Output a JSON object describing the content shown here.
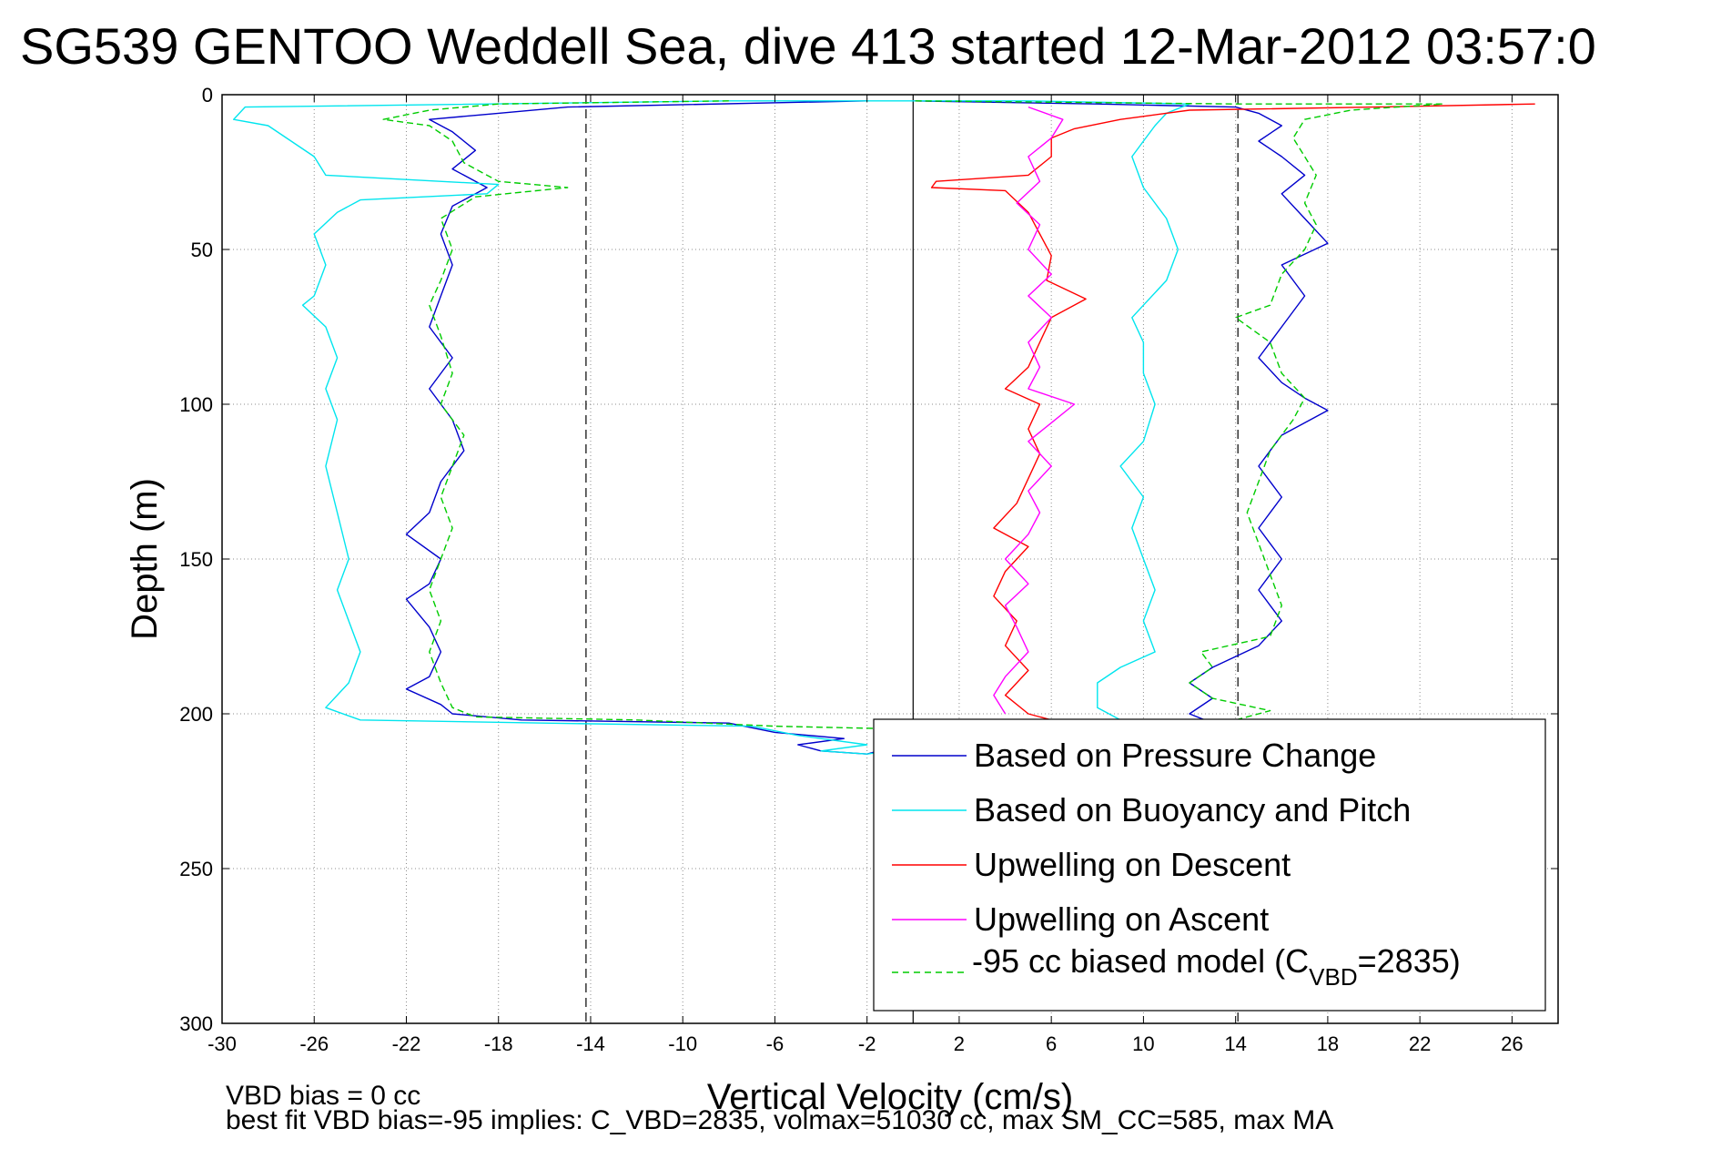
{
  "chart_data": {
    "type": "line",
    "title": "SG539 GENTOO Weddell Sea, dive 413 started 12-Mar-2012 03:57:0",
    "xlabel": "Vertical Velocity (cm/s)",
    "ylabel": "Depth (m)",
    "xlim": [
      -30,
      28
    ],
    "ylim": [
      0,
      300
    ],
    "y_reversed": true,
    "x_ticks": [
      "-30",
      "-26",
      "-22",
      "-18",
      "-14",
      "-10",
      "-6",
      "-2",
      "2",
      "6",
      "10",
      "14",
      "18",
      "22",
      "26"
    ],
    "y_ticks": [
      "0",
      "50",
      "100",
      "150",
      "200",
      "250",
      "300"
    ],
    "grid": true,
    "legend_position": "bottom-right",
    "reference_lines": [
      {
        "x": -14.2,
        "style": "dashed"
      },
      {
        "x": 0,
        "style": "solid"
      },
      {
        "x": 14.1,
        "style": "dashed"
      }
    ],
    "series": [
      {
        "name": "Based on Pressure Change",
        "color": "#0000cc",
        "style": "solid",
        "points": [
          [
            -2,
            2
          ],
          [
            -15,
            4
          ],
          [
            -18,
            6
          ],
          [
            -21,
            8
          ],
          [
            -20,
            12
          ],
          [
            -19,
            18
          ],
          [
            -20,
            24
          ],
          [
            -18.5,
            30
          ],
          [
            -20,
            36
          ],
          [
            -20.5,
            45
          ],
          [
            -20,
            55
          ],
          [
            -20.5,
            65
          ],
          [
            -21,
            75
          ],
          [
            -20,
            85
          ],
          [
            -21,
            95
          ],
          [
            -20,
            105
          ],
          [
            -19.5,
            115
          ],
          [
            -20.5,
            125
          ],
          [
            -21,
            135
          ],
          [
            -22,
            142
          ],
          [
            -20.5,
            150
          ],
          [
            -21,
            158
          ],
          [
            -22,
            163
          ],
          [
            -21,
            172
          ],
          [
            -20.5,
            180
          ],
          [
            -21,
            188
          ],
          [
            -22,
            192
          ],
          [
            -20.5,
            197
          ],
          [
            -20,
            200
          ],
          [
            -17,
            202
          ],
          [
            -8,
            203
          ],
          [
            -6,
            206
          ],
          [
            -3,
            208
          ],
          [
            -5,
            210
          ],
          [
            -4,
            212
          ],
          [
            -2,
            213
          ],
          [
            -1,
            211
          ],
          [
            1,
            209
          ],
          [
            3,
            207
          ],
          [
            6,
            206
          ],
          [
            9,
            205
          ],
          [
            12,
            204
          ],
          [
            13,
            203
          ],
          [
            12,
            200
          ],
          [
            13,
            195
          ],
          [
            12,
            190
          ],
          [
            13,
            185
          ],
          [
            15,
            178
          ],
          [
            16,
            170
          ],
          [
            15,
            160
          ],
          [
            16,
            150
          ],
          [
            15,
            140
          ],
          [
            16,
            130
          ],
          [
            15,
            120
          ],
          [
            16,
            110
          ],
          [
            18,
            102
          ],
          [
            17,
            98
          ],
          [
            16,
            93
          ],
          [
            15,
            85
          ],
          [
            16,
            75
          ],
          [
            17,
            65
          ],
          [
            16,
            55
          ],
          [
            18,
            48
          ],
          [
            17,
            40
          ],
          [
            16,
            32
          ],
          [
            17,
            26
          ],
          [
            16,
            20
          ],
          [
            15,
            15
          ],
          [
            16,
            10
          ],
          [
            15,
            6
          ],
          [
            14,
            4
          ],
          [
            8,
            3
          ],
          [
            0,
            2
          ]
        ]
      },
      {
        "name": "Based on Buoyancy and Pitch",
        "color": "#00e5ee",
        "style": "solid",
        "points": [
          [
            -8,
            2
          ],
          [
            -29,
            4
          ],
          [
            -29.5,
            8
          ],
          [
            -28,
            10
          ],
          [
            -27,
            15
          ],
          [
            -26,
            20
          ],
          [
            -25.5,
            26
          ],
          [
            -18,
            29
          ],
          [
            -18.5,
            32
          ],
          [
            -24,
            34
          ],
          [
            -25,
            38
          ],
          [
            -26,
            45
          ],
          [
            -25.5,
            55
          ],
          [
            -26,
            65
          ],
          [
            -26.5,
            68
          ],
          [
            -25.5,
            75
          ],
          [
            -25,
            85
          ],
          [
            -25.5,
            95
          ],
          [
            -25,
            105
          ],
          [
            -25.5,
            120
          ],
          [
            -25,
            135
          ],
          [
            -24.5,
            150
          ],
          [
            -25,
            160
          ],
          [
            -24.5,
            170
          ],
          [
            -24,
            180
          ],
          [
            -24.5,
            190
          ],
          [
            -25.5,
            198
          ],
          [
            -24,
            202
          ],
          [
            -16,
            203
          ],
          [
            -7,
            204
          ],
          [
            -5,
            207
          ],
          [
            -2,
            210
          ],
          [
            -4,
            212
          ],
          [
            -2,
            213
          ],
          [
            1,
            210
          ],
          [
            4,
            207
          ],
          [
            7,
            205
          ],
          [
            9,
            202
          ],
          [
            8,
            198
          ],
          [
            8,
            190
          ],
          [
            9,
            185
          ],
          [
            10.5,
            180
          ],
          [
            10,
            170
          ],
          [
            10.5,
            160
          ],
          [
            10,
            150
          ],
          [
            9.5,
            140
          ],
          [
            10,
            130
          ],
          [
            9,
            120
          ],
          [
            10,
            112
          ],
          [
            10.5,
            100
          ],
          [
            10,
            90
          ],
          [
            10,
            80
          ],
          [
            9.5,
            72
          ],
          [
            10,
            68
          ],
          [
            11,
            60
          ],
          [
            11.5,
            50
          ],
          [
            11,
            40
          ],
          [
            10,
            30
          ],
          [
            9.5,
            20
          ],
          [
            10,
            15
          ],
          [
            10.5,
            10
          ],
          [
            11,
            6
          ],
          [
            12,
            3
          ],
          [
            5,
            2
          ],
          [
            -8,
            2
          ]
        ]
      },
      {
        "name": "Upwelling on Descent",
        "color": "#ff0000",
        "style": "solid",
        "points": [
          [
            27,
            3
          ],
          [
            20,
            4
          ],
          [
            12,
            5
          ],
          [
            9,
            8
          ],
          [
            7,
            11
          ],
          [
            6,
            14
          ],
          [
            6,
            20
          ],
          [
            5,
            26
          ],
          [
            1,
            28
          ],
          [
            0.8,
            30
          ],
          [
            4,
            31
          ],
          [
            5,
            38
          ],
          [
            5.5,
            45
          ],
          [
            6,
            52
          ],
          [
            5.8,
            60
          ],
          [
            7.5,
            66
          ],
          [
            6,
            72
          ],
          [
            5.5,
            80
          ],
          [
            5,
            88
          ],
          [
            4,
            95
          ],
          [
            5.5,
            100
          ],
          [
            5,
            108
          ],
          [
            5.5,
            116
          ],
          [
            5,
            124
          ],
          [
            4.5,
            132
          ],
          [
            3.5,
            140
          ],
          [
            5,
            146
          ],
          [
            4,
            154
          ],
          [
            3.5,
            162
          ],
          [
            4.5,
            170
          ],
          [
            4,
            178
          ],
          [
            5,
            186
          ],
          [
            4,
            194
          ],
          [
            5,
            200
          ],
          [
            6,
            202
          ]
        ]
      },
      {
        "name": "Upwelling on Ascent",
        "color": "#ff00ff",
        "style": "solid",
        "points": [
          [
            4,
            200
          ],
          [
            3.5,
            194
          ],
          [
            4,
            188
          ],
          [
            5,
            180
          ],
          [
            4.5,
            172
          ],
          [
            4,
            165
          ],
          [
            5,
            158
          ],
          [
            4,
            150
          ],
          [
            5,
            142
          ],
          [
            5.5,
            135
          ],
          [
            5,
            128
          ],
          [
            6,
            120
          ],
          [
            5,
            112
          ],
          [
            6,
            106
          ],
          [
            7,
            100
          ],
          [
            5,
            95
          ],
          [
            5.5,
            88
          ],
          [
            5,
            80
          ],
          [
            6,
            72
          ],
          [
            5,
            65
          ],
          [
            6,
            58
          ],
          [
            5,
            50
          ],
          [
            5.5,
            42
          ],
          [
            4.5,
            35
          ],
          [
            5.5,
            28
          ],
          [
            5,
            20
          ],
          [
            6,
            14
          ],
          [
            6.5,
            8
          ],
          [
            5,
            4
          ]
        ]
      },
      {
        "name": "-95 cc biased model (C_VBD=2835)",
        "color": "#00cc00",
        "style": "dashed",
        "points": [
          [
            -8,
            2
          ],
          [
            -18,
            3
          ],
          [
            -21,
            5
          ],
          [
            -23,
            8
          ],
          [
            -21,
            10
          ],
          [
            -20,
            15
          ],
          [
            -19.5,
            22
          ],
          [
            -18,
            28
          ],
          [
            -15,
            30
          ],
          [
            -19,
            33
          ],
          [
            -20.5,
            40
          ],
          [
            -20,
            50
          ],
          [
            -20.5,
            60
          ],
          [
            -21,
            68
          ],
          [
            -20.5,
            78
          ],
          [
            -20,
            90
          ],
          [
            -20.5,
            100
          ],
          [
            -19.5,
            110
          ],
          [
            -20,
            120
          ],
          [
            -20.5,
            130
          ],
          [
            -20,
            140
          ],
          [
            -20.5,
            150
          ],
          [
            -21,
            160
          ],
          [
            -20.5,
            170
          ],
          [
            -21,
            180
          ],
          [
            -20.5,
            190
          ],
          [
            -20,
            198
          ],
          [
            -19,
            201
          ],
          [
            -12,
            202
          ],
          [
            -6,
            204
          ],
          [
            0,
            205
          ],
          [
            6,
            206
          ],
          [
            10,
            205
          ],
          [
            12,
            204
          ],
          [
            14,
            202
          ],
          [
            15.5,
            199
          ],
          [
            13,
            195
          ],
          [
            12,
            190
          ],
          [
            13,
            185
          ],
          [
            12.5,
            180
          ],
          [
            15.5,
            175
          ],
          [
            16,
            165
          ],
          [
            15.5,
            155
          ],
          [
            15,
            145
          ],
          [
            14.5,
            135
          ],
          [
            15,
            125
          ],
          [
            15.5,
            115
          ],
          [
            16.5,
            105
          ],
          [
            17,
            98
          ],
          [
            16,
            90
          ],
          [
            15.5,
            80
          ],
          [
            14,
            72
          ],
          [
            15.5,
            68
          ],
          [
            16,
            58
          ],
          [
            17,
            50
          ],
          [
            17.5,
            42
          ],
          [
            17,
            35
          ],
          [
            17.5,
            26
          ],
          [
            17,
            20
          ],
          [
            16.5,
            14
          ],
          [
            17,
            8
          ],
          [
            19,
            5
          ],
          [
            23,
            3
          ],
          [
            14,
            3
          ],
          [
            0,
            2
          ]
        ]
      }
    ]
  },
  "legend": {
    "items": [
      {
        "label": "Based on Pressure Change",
        "color": "#0000cc",
        "dash": false
      },
      {
        "label": "Based on Buoyancy and Pitch",
        "color": "#00e5ee",
        "dash": false
      },
      {
        "label": "Upwelling on Descent",
        "color": "#ff0000",
        "dash": false
      },
      {
        "label": "Upwelling on Ascent",
        "color": "#ff00ff",
        "dash": false
      }
    ],
    "model_item": {
      "prefix": "-95 cc biased model (C",
      "sub": "VBD",
      "suffix": "=2835)",
      "color": "#00cc00"
    }
  },
  "footer": {
    "line1": "VBD bias = 0 cc",
    "line2": "best fit VBD bias=-95 implies: C_VBD=2835, volmax=51030 cc, max SM_CC=585, max MA"
  }
}
